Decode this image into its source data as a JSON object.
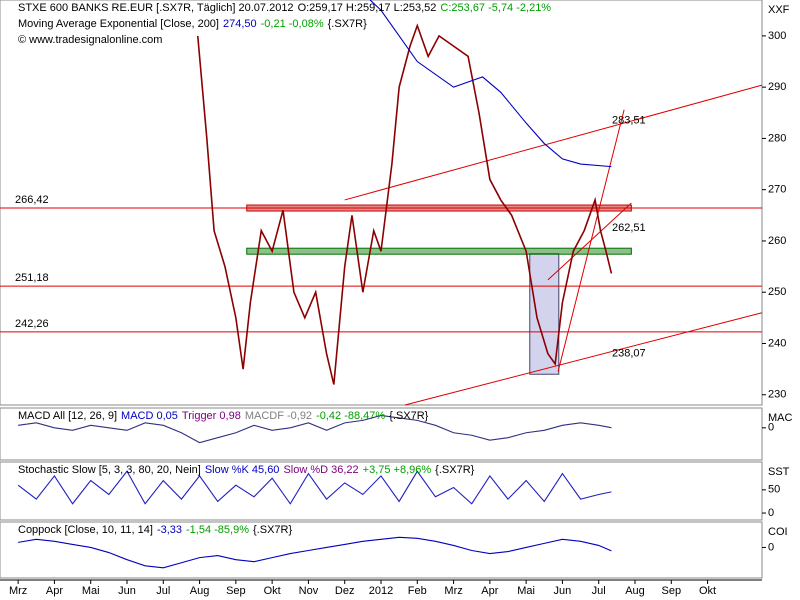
{
  "chart_data": [
    {
      "type": "line",
      "header": [
        [
          {
            "text": "STXE 600 BANKS RE.EUR [.SX7R, Täglich] 20.07.2012",
            "color": "#000000"
          },
          {
            "text": "O:259,17 H:259,17 L:253,52",
            "color": "#000000"
          },
          {
            "text": "C:253,67 -5,74 -2,21%",
            "color": "#00a000"
          }
        ],
        [
          {
            "text": "Moving Average Exponential [Close, 200]",
            "color": "#000000"
          },
          {
            "text": "274,50",
            "color": "#0000c0"
          },
          {
            "text": "-0,21 -0,08%",
            "color": "#00a000"
          },
          {
            "text": "{.SX7R}",
            "color": "#000000"
          }
        ],
        [
          {
            "text": "© www.tradesignalonline.com",
            "color": "#000000"
          }
        ]
      ],
      "axis_label": "XXF",
      "xlim": [
        -0.5,
        20.5
      ],
      "xticks": [
        {
          "value": 0,
          "label": "Mrz"
        },
        {
          "value": 1,
          "label": "Apr"
        },
        {
          "value": 2,
          "label": "Mai"
        },
        {
          "value": 3,
          "label": "Jun"
        },
        {
          "value": 4,
          "label": "Jul"
        },
        {
          "value": 5,
          "label": "Aug"
        },
        {
          "value": 6,
          "label": "Sep"
        },
        {
          "value": 7,
          "label": "Okt"
        },
        {
          "value": 8,
          "label": "Nov"
        },
        {
          "value": 9,
          "label": "Dez"
        },
        {
          "value": 10,
          "label": "2012"
        },
        {
          "value": 11,
          "label": "Feb"
        },
        {
          "value": 12,
          "label": "Mrz"
        },
        {
          "value": 13,
          "label": "Apr"
        },
        {
          "value": 14,
          "label": "Mai"
        },
        {
          "value": 15,
          "label": "Jun"
        },
        {
          "value": 16,
          "label": "Jul"
        },
        {
          "value": 17,
          "label": "Aug"
        },
        {
          "value": 18,
          "label": "Sep"
        },
        {
          "value": 19,
          "label": "Okt"
        }
      ],
      "ylim": [
        228,
        307
      ],
      "yticks": [
        230,
        240,
        250,
        260,
        270,
        280,
        290,
        300
      ],
      "series": [
        {
          "color": "#8b0000",
          "x": [
            4.95,
            5.2,
            5.4,
            5.7,
            6.0,
            6.2,
            6.4,
            6.7,
            7.0,
            7.3,
            7.6,
            7.9,
            8.2,
            8.5,
            8.7,
            9.0,
            9.2,
            9.5,
            9.8,
            10.0,
            10.3,
            10.5,
            10.8,
            11.0,
            11.3,
            11.6,
            12.0,
            12.4,
            12.7,
            13.0,
            13.3,
            13.6,
            14.0,
            14.3,
            14.6,
            14.8,
            15.0,
            15.3,
            15.6,
            15.9,
            16.05,
            16.2,
            16.35
          ],
          "values": [
            300,
            280,
            262,
            255,
            245,
            235,
            248,
            262,
            258,
            266,
            250,
            245,
            250,
            238,
            232,
            255,
            265,
            250,
            262,
            258,
            275,
            290,
            298,
            302,
            296,
            300,
            298,
            296,
            285,
            272,
            268,
            265,
            258,
            245,
            238,
            236,
            248,
            258,
            262,
            268,
            262,
            258,
            253.67
          ]
        },
        {
          "color": "#0000c0",
          "x": [
            9.7,
            10,
            11,
            12,
            12.8,
            13.3,
            14,
            14.5,
            15,
            15.5,
            16.35
          ],
          "values": [
            307,
            305,
            295,
            290,
            292,
            289,
            283,
            279,
            276,
            275,
            274.5
          ]
        }
      ],
      "hlines": [
        {
          "value": 266.42,
          "label": "266,42"
        },
        {
          "value": 251.18,
          "label": "251,18"
        },
        {
          "value": 242.26,
          "label": "242,26"
        }
      ],
      "bands": [
        {
          "y": 266.42,
          "x": [
            6.3,
            16.9
          ],
          "color": "#cc0000"
        },
        {
          "y": 258,
          "x": [
            6.3,
            16.9
          ],
          "color": "#007000"
        }
      ],
      "highlight": {
        "x": [
          14.1,
          14.9
        ],
        "y": [
          234,
          257.5
        ]
      },
      "trendlines": [
        {
          "x": [
            9.0,
            20.5
          ],
          "y": [
            268,
            290.4
          ],
          "label": {
            "value": 283.51,
            "label": "283,51"
          }
        },
        {
          "x": [
            10.66,
            20.5
          ],
          "y": [
            228,
            246
          ],
          "label": {
            "value": 238.07,
            "label": "238,07"
          }
        },
        {
          "x": [
            14.6,
            16.9
          ],
          "y": [
            252.4,
            267.4
          ],
          "label": {
            "value": 262.51,
            "label": "262,51"
          }
        },
        {
          "x": [
            14.88,
            16.7
          ],
          "y": [
            234.5,
            285.6
          ]
        }
      ],
      "line_color": "#dd0000"
    },
    {
      "type": "line",
      "header": [
        [
          {
            "text": "MACD All [12, 26, 9]",
            "color": "#000000"
          },
          {
            "text": "MACD 0,05",
            "color": "#0000c0"
          },
          {
            "text": "Trigger 0,98",
            "color": "#800080"
          },
          {
            "text": "MACDF -0,92",
            "color": "#808080"
          },
          {
            "text": "-0,42 -88,47%",
            "color": "#00a000"
          },
          {
            "text": "{.SX7R}",
            "color": "#000000"
          }
        ]
      ],
      "axis_label": "MAC",
      "ylim": [
        -13,
        8
      ],
      "yticks": [
        0
      ],
      "x": [
        0,
        0.5,
        1,
        1.5,
        2,
        2.5,
        3,
        3.5,
        4,
        4.5,
        5,
        5.5,
        6,
        6.5,
        7,
        7.5,
        8,
        8.5,
        9,
        9.5,
        10,
        10.5,
        11,
        11.5,
        12,
        12.5,
        13,
        13.5,
        14,
        14.5,
        15,
        15.5,
        16,
        16.35
      ],
      "series": [
        {
          "color": "#303080",
          "values": [
            1,
            2,
            0,
            -1,
            1,
            0,
            -1,
            2,
            1,
            -2,
            -6,
            -4,
            -2,
            1,
            -1,
            0,
            2,
            -1,
            2,
            3,
            5,
            4,
            3,
            1,
            -2,
            -3,
            -5,
            -4,
            -2,
            -1,
            1,
            2,
            1,
            0.05
          ]
        }
      ]
    },
    {
      "type": "line",
      "header": [
        [
          {
            "text": "Stochastic Slow [5, 3, 3, 80, 20, Nein]",
            "color": "#000000"
          },
          {
            "text": "Slow %K 45,60",
            "color": "#0000c0"
          },
          {
            "text": "Slow %D 36,22",
            "color": "#800080"
          },
          {
            "text": "+3,75 +8,96%",
            "color": "#00a000"
          },
          {
            "text": "{.SX7R}",
            "color": "#000000"
          }
        ]
      ],
      "axis_label": "SST",
      "ylim": [
        -15,
        110
      ],
      "yticks": [
        0,
        50
      ],
      "x": [
        0,
        0.5,
        1,
        1.5,
        2,
        2.5,
        3,
        3.5,
        4,
        4.5,
        5,
        5.5,
        6,
        6.5,
        7,
        7.5,
        8,
        8.5,
        9,
        9.5,
        10,
        10.5,
        11,
        11.5,
        12,
        12.5,
        13,
        13.5,
        14,
        14.5,
        15,
        15.5,
        16,
        16.35
      ],
      "series": [
        {
          "color": "#2020c0",
          "values": [
            60,
            30,
            80,
            20,
            70,
            40,
            90,
            20,
            70,
            30,
            80,
            25,
            60,
            35,
            75,
            20,
            85,
            30,
            65,
            40,
            80,
            25,
            90,
            35,
            55,
            20,
            80,
            30,
            70,
            25,
            85,
            30,
            40,
            45.6
          ]
        }
      ]
    },
    {
      "type": "line",
      "header": [
        [
          {
            "text": "Coppock [Close, 10, 11, 14]",
            "color": "#000000"
          },
          {
            "text": "-3,33",
            "color": "#0000c0"
          },
          {
            "text": "-1,54 -85,9%",
            "color": "#00a000"
          },
          {
            "text": "{.SX7R}",
            "color": "#000000"
          }
        ]
      ],
      "axis_label": "COI",
      "ylim": [
        -30,
        25
      ],
      "yticks": [
        0
      ],
      "x": [
        0,
        0.5,
        1,
        1.5,
        2,
        2.5,
        3,
        3.5,
        4,
        4.5,
        5,
        5.5,
        6,
        6.5,
        7,
        7.5,
        8,
        8.5,
        9,
        9.5,
        10,
        10.5,
        11,
        11.5,
        12,
        12.5,
        13,
        13.5,
        14,
        14.5,
        15,
        15.5,
        16,
        16.35
      ],
      "series": [
        {
          "color": "#0000c0",
          "values": [
            5,
            8,
            6,
            3,
            0,
            -5,
            -12,
            -18,
            -20,
            -15,
            -10,
            -8,
            -12,
            -14,
            -10,
            -6,
            -3,
            0,
            3,
            6,
            8,
            10,
            9,
            6,
            2,
            -3,
            -6,
            -4,
            0,
            4,
            8,
            6,
            2,
            -3.33
          ]
        }
      ]
    }
  ]
}
